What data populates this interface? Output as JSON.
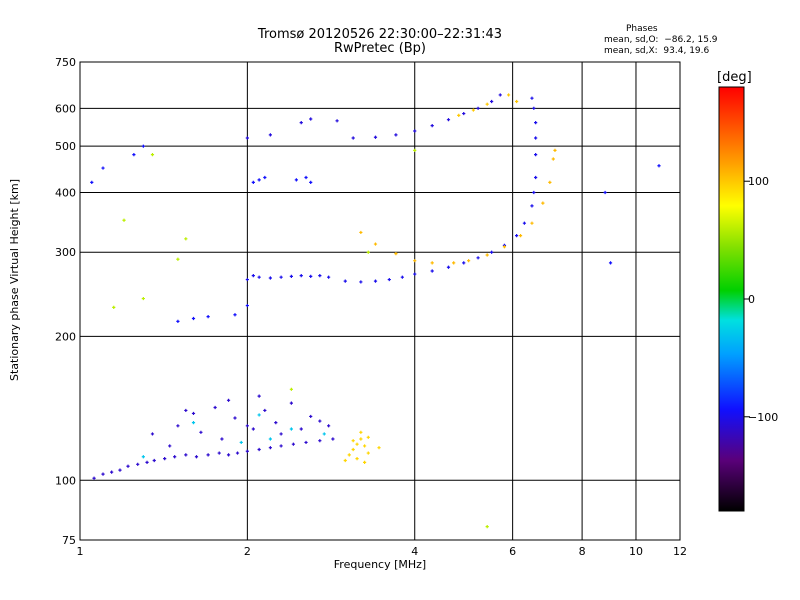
{
  "chart_data": {
    "type": "scatter",
    "title": "Tromsø 20120526 22:30:00–22:31:43",
    "subtitle": "RwPretec (Bp)",
    "xlabel": "Frequency [MHz]",
    "ylabel": "Stationary phase Virtual Height [km]",
    "x_scale": "log",
    "y_scale": "log",
    "xlim": [
      1,
      12
    ],
    "ylim": [
      75,
      750
    ],
    "x_ticks": [
      1,
      2,
      4,
      6,
      8,
      10,
      12
    ],
    "y_ticks": [
      75,
      100,
      200,
      300,
      400,
      500,
      600,
      750
    ],
    "grid": true,
    "phases": {
      "heading": "Phases",
      "o_mode": "mean, sd,O:  −86.2, 15.9",
      "x_mode": "mean, sd,X:  93.4, 19.6"
    },
    "colorbar": {
      "unit": "[deg]",
      "range": [
        -180,
        180
      ],
      "ticks": [
        100,
        0,
        -100
      ]
    },
    "series": [
      {
        "points": [
          [
            1.06,
            101
          ],
          [
            1.1,
            103
          ],
          [
            1.14,
            104
          ],
          [
            1.18,
            105
          ],
          [
            1.22,
            107
          ],
          [
            1.27,
            108
          ],
          [
            1.32,
            109
          ],
          [
            1.36,
            110
          ],
          [
            1.42,
            111
          ],
          [
            1.48,
            112
          ],
          [
            1.55,
            113
          ],
          [
            1.62,
            112
          ],
          [
            1.7,
            113
          ],
          [
            1.78,
            114
          ],
          [
            1.85,
            113
          ],
          [
            1.92,
            114
          ],
          [
            2.0,
            115
          ],
          [
            2.1,
            116
          ],
          [
            2.2,
            117
          ],
          [
            2.3,
            118
          ],
          [
            2.42,
            119
          ],
          [
            2.55,
            120
          ],
          [
            2.7,
            121
          ],
          [
            2.85,
            122
          ],
          [
            1.35,
            125
          ],
          [
            1.5,
            130
          ],
          [
            1.6,
            138
          ],
          [
            1.75,
            142
          ],
          [
            1.9,
            135
          ],
          [
            2.05,
            128
          ],
          [
            2.15,
            140
          ],
          [
            2.25,
            132
          ],
          [
            2.4,
            145
          ],
          [
            2.6,
            136
          ],
          [
            2.8,
            130
          ],
          [
            1.45,
            118
          ],
          [
            1.65,
            126
          ],
          [
            1.8,
            122
          ],
          [
            2.0,
            130
          ],
          [
            2.3,
            125
          ],
          [
            2.5,
            128
          ],
          [
            2.7,
            133
          ],
          [
            1.55,
            140
          ],
          [
            1.85,
            147
          ],
          [
            2.1,
            150
          ]
        ],
        "phase": -110
      },
      {
        "points": [
          [
            1.3,
            112
          ],
          [
            1.6,
            132
          ],
          [
            2.1,
            137
          ],
          [
            2.4,
            128
          ],
          [
            2.75,
            125
          ],
          [
            1.95,
            120
          ],
          [
            2.2,
            122
          ]
        ],
        "phase": -30
      },
      {
        "points": [
          [
            3.0,
            110
          ],
          [
            3.05,
            113
          ],
          [
            3.1,
            116
          ],
          [
            3.15,
            119
          ],
          [
            3.2,
            122
          ],
          [
            3.25,
            118
          ],
          [
            3.3,
            114
          ],
          [
            3.1,
            121
          ],
          [
            3.2,
            126
          ],
          [
            3.3,
            123
          ],
          [
            3.45,
            117
          ],
          [
            3.15,
            111
          ],
          [
            3.25,
            109
          ]
        ],
        "phase": 95
      },
      {
        "points": [
          [
            2.0,
            263
          ],
          [
            2.05,
            268
          ],
          [
            2.1,
            266
          ],
          [
            2.2,
            265
          ],
          [
            2.3,
            266
          ],
          [
            2.4,
            267
          ],
          [
            2.5,
            268
          ],
          [
            2.6,
            267
          ],
          [
            2.7,
            268
          ],
          [
            2.8,
            266
          ],
          [
            3.0,
            261
          ],
          [
            3.2,
            260
          ],
          [
            3.4,
            261
          ],
          [
            3.6,
            263
          ],
          [
            3.8,
            266
          ],
          [
            4.0,
            270
          ],
          [
            4.3,
            274
          ],
          [
            4.6,
            279
          ],
          [
            4.9,
            285
          ],
          [
            5.2,
            292
          ],
          [
            5.5,
            300
          ],
          [
            5.8,
            310
          ],
          [
            6.1,
            325
          ],
          [
            6.3,
            345
          ],
          [
            6.5,
            375
          ],
          [
            6.55,
            400
          ],
          [
            6.6,
            430
          ],
          [
            6.6,
            480
          ],
          [
            6.6,
            520
          ],
          [
            6.6,
            560
          ],
          [
            6.55,
            600
          ],
          [
            6.5,
            630
          ]
        ],
        "phase": -100
      },
      {
        "points": [
          [
            3.2,
            330
          ],
          [
            3.4,
            312
          ],
          [
            3.7,
            298
          ],
          [
            4.0,
            288
          ],
          [
            4.3,
            285
          ],
          [
            4.7,
            285
          ],
          [
            5.0,
            288
          ],
          [
            5.4,
            296
          ],
          [
            5.8,
            308
          ],
          [
            6.2,
            325
          ],
          [
            6.5,
            345
          ],
          [
            6.8,
            380
          ],
          [
            7.0,
            420
          ],
          [
            7.1,
            470
          ],
          [
            7.15,
            490
          ]
        ],
        "phase": 105
      },
      {
        "points": [
          [
            2.0,
            520
          ],
          [
            2.2,
            528
          ],
          [
            2.5,
            560
          ],
          [
            2.6,
            570
          ],
          [
            2.9,
            565
          ],
          [
            3.1,
            520
          ],
          [
            3.4,
            522
          ],
          [
            3.7,
            528
          ],
          [
            4.0,
            538
          ],
          [
            4.3,
            552
          ],
          [
            4.6,
            568
          ],
          [
            4.9,
            585
          ],
          [
            5.2,
            600
          ],
          [
            5.5,
            620
          ],
          [
            5.7,
            640
          ]
        ],
        "phase": -105
      },
      {
        "points": [
          [
            4.8,
            580
          ],
          [
            5.1,
            595
          ],
          [
            5.4,
            612
          ],
          [
            5.9,
            640
          ],
          [
            6.1,
            620
          ]
        ],
        "phase": 100
      },
      {
        "points": [
          [
            2.05,
            420
          ],
          [
            2.1,
            425
          ],
          [
            2.15,
            430
          ],
          [
            2.45,
            425
          ],
          [
            2.55,
            430
          ],
          [
            2.6,
            420
          ],
          [
            1.6,
            218
          ],
          [
            1.7,
            220
          ],
          [
            1.5,
            215
          ],
          [
            1.9,
            222
          ],
          [
            2.0,
            232
          ],
          [
            1.3,
            500
          ],
          [
            1.1,
            450
          ],
          [
            8.8,
            400
          ],
          [
            9.0,
            285
          ],
          [
            11.0,
            455
          ],
          [
            1.25,
            480
          ],
          [
            1.05,
            420
          ]
        ],
        "phase": -95
      },
      {
        "points": [
          [
            1.2,
            350
          ],
          [
            1.5,
            290
          ],
          [
            1.15,
            230
          ],
          [
            1.55,
            320
          ],
          [
            1.3,
            240
          ],
          [
            3.3,
            300
          ],
          [
            2.4,
            155
          ],
          [
            4.0,
            490
          ],
          [
            1.35,
            480
          ],
          [
            5.4,
            80
          ]
        ],
        "phase": 60
      }
    ]
  }
}
